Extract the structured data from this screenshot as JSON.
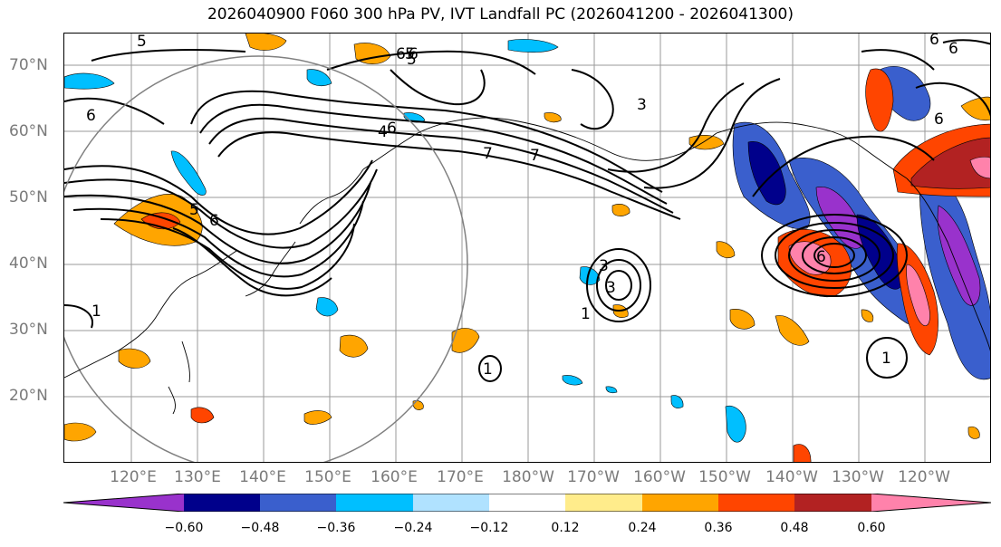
{
  "title": "2026040900 F060 300 hPa PV, IVT Landfall PC (2026041200 - 2026041300)",
  "lat_labels": [
    "70°N",
    "60°N",
    "50°N",
    "40°N",
    "30°N",
    "20°N"
  ],
  "lon_labels": [
    "120°E",
    "130°E",
    "140°E",
    "150°E",
    "160°E",
    "170°E",
    "180°W",
    "170°W",
    "160°W",
    "150°W",
    "140°W",
    "130°W",
    "120°W"
  ],
  "contour_labels": [
    "5",
    "6",
    "5",
    "6",
    "1",
    "6",
    "6",
    "4",
    "5",
    "6",
    "7",
    "7",
    "6",
    "5",
    "1",
    "1",
    "3",
    "3",
    "6",
    "1",
    "6",
    "6",
    "3"
  ],
  "colorbar": {
    "ticks": [
      "−0.60",
      "−0.48",
      "−0.36",
      "−0.24",
      "−0.12",
      "0.12",
      "0.24",
      "0.36",
      "0.48",
      "0.60"
    ],
    "colors": [
      "#9932CC",
      "#00008B",
      "#3A5FCD",
      "#00BFFF",
      "#B0E2FF",
      "#FFFFFF",
      "#FFEC8B",
      "#FFA500",
      "#FF4500",
      "#B22222",
      "#FF82AB"
    ]
  },
  "fill_colors": {
    "pos1": "#FFEC8B",
    "pos2": "#FFA500",
    "pos3": "#FF4500",
    "pos4": "#B22222",
    "pos5": "#FF82AB",
    "neg1": "#B0E2FF",
    "neg2": "#00BFFF",
    "neg3": "#3A5FCD",
    "neg4": "#00008B",
    "neg5": "#9932CC"
  }
}
